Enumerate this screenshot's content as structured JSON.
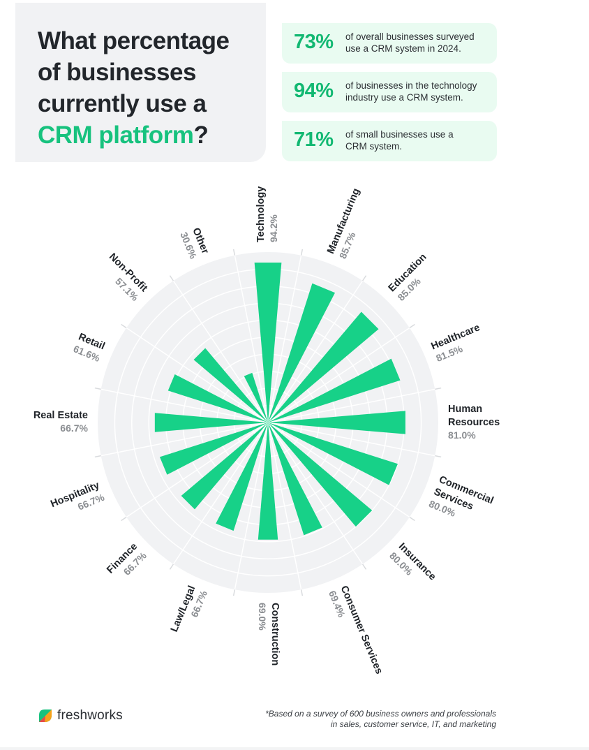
{
  "header": {
    "title_line1": "What percentage",
    "title_line2": "of businesses",
    "title_line3": "currently use a",
    "title_accent": "CRM platform",
    "title_end": "?"
  },
  "stats": [
    {
      "value": "73%",
      "line1": "of overall businesses surveyed",
      "line2": "use a CRM system in 2024."
    },
    {
      "value": "94%",
      "line1": "of businesses in the technology",
      "line2": "industry use a CRM system."
    },
    {
      "value": "71%",
      "line1": "of small businesses use a",
      "line2": "CRM system."
    }
  ],
  "colors": {
    "accent": "#17c27e",
    "bar": "#17d188",
    "stat_bg": "#e9fbf1",
    "title_card_bg": "#f1f2f4",
    "chart_bg": "#f1f2f4",
    "value_label": "#8a8d91"
  },
  "chart_data": {
    "type": "radial-bar",
    "ylim": [
      0,
      100
    ],
    "categories": [
      "Technology",
      "Manufacturing",
      "Education",
      "Healthcare",
      "Human Resources",
      "Commercial Services",
      "Insurance",
      "Consumer Services",
      "Construction",
      "Law/Legal",
      "Finance",
      "Hospitality",
      "Real Estate",
      "Retail",
      "Non-Profit",
      "Other"
    ],
    "values": [
      94.2,
      85.7,
      85.0,
      81.5,
      81.0,
      80.0,
      80.0,
      69.4,
      69.0,
      66.7,
      66.7,
      66.7,
      66.7,
      61.6,
      57.1,
      30.6
    ],
    "value_labels": [
      "94.2%",
      "85.7%",
      "85.0%",
      "81.5%",
      "81.0%",
      "80.0%",
      "80.0%",
      "69.4%",
      "69.0%",
      "66.7%",
      "66.7%",
      "66.7%",
      "66.7%",
      "61.6%",
      "57.1%",
      "30.6%"
    ],
    "grid": true
  },
  "footer": {
    "logo_text": "freshworks",
    "logo_icon": "freshworks-logo-icon",
    "note_line1": "*Based on a survey of 600 business owners and professionals",
    "note_line2": "in sales, customer service, IT, and marketing"
  }
}
